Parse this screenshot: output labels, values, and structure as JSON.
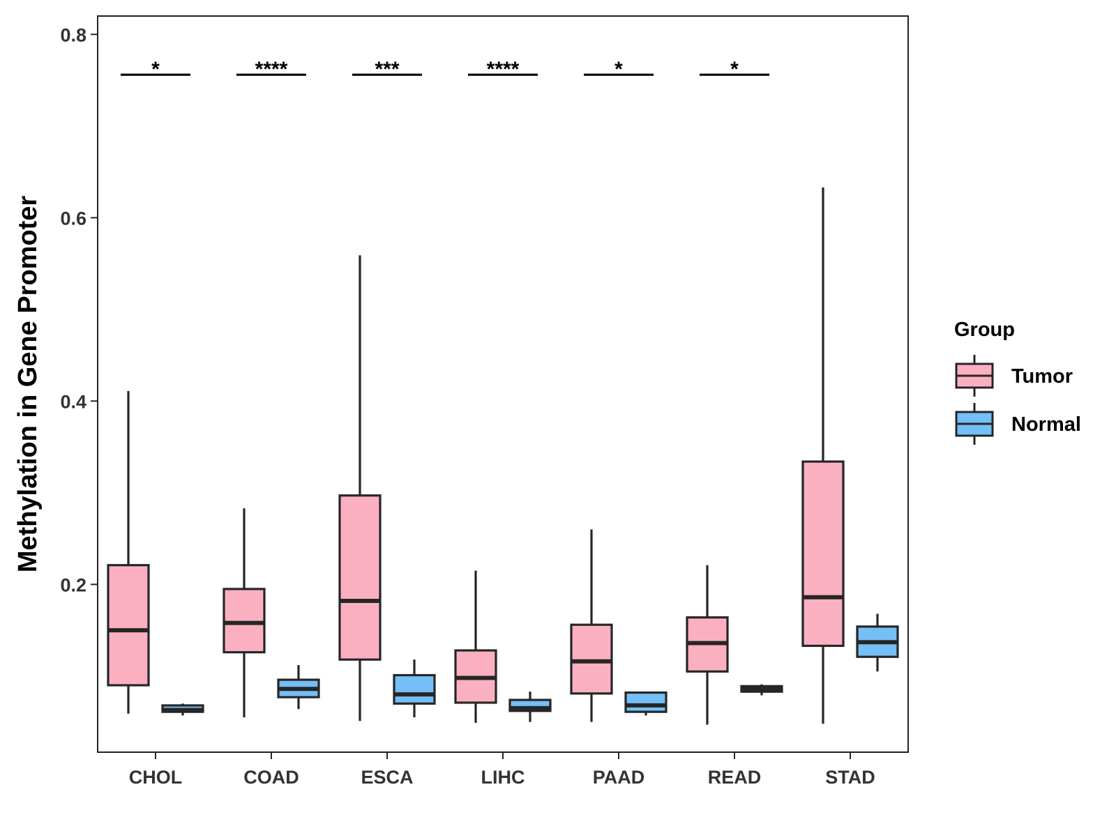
{
  "chart_data": {
    "type": "boxplot",
    "title": "",
    "xlabel": "",
    "ylabel": "Methylation in Gene Promoter",
    "ylim": [
      0.017,
      0.82
    ],
    "yticks": [
      0.2,
      0.4,
      0.6,
      0.8
    ],
    "ytick_labels": [
      "0.2",
      "0.4",
      "0.6",
      "0.8"
    ],
    "categories": [
      "CHOL",
      "COAD",
      "ESCA",
      "LIHC",
      "PAAD",
      "READ",
      "STAD"
    ],
    "legend": {
      "title": "Group",
      "position": "right",
      "entries": [
        {
          "name": "Tumor",
          "color": "#FBB0C2"
        },
        {
          "name": "Normal",
          "color": "#74BFF6"
        }
      ]
    },
    "series": [
      {
        "name": "Tumor",
        "color": "#FBB0C2",
        "boxes": [
          {
            "category": "CHOL",
            "min": 0.059,
            "q1": 0.09,
            "median": 0.15,
            "q3": 0.221,
            "max": 0.411
          },
          {
            "category": "COAD",
            "min": 0.055,
            "q1": 0.126,
            "median": 0.158,
            "q3": 0.195,
            "max": 0.283
          },
          {
            "category": "ESCA",
            "min": 0.051,
            "q1": 0.118,
            "median": 0.182,
            "q3": 0.297,
            "max": 0.559
          },
          {
            "category": "LIHC",
            "min": 0.049,
            "q1": 0.071,
            "median": 0.098,
            "q3": 0.128,
            "max": 0.215
          },
          {
            "category": "PAAD",
            "min": 0.05,
            "q1": 0.081,
            "median": 0.116,
            "q3": 0.156,
            "max": 0.26
          },
          {
            "category": "READ",
            "min": 0.047,
            "q1": 0.105,
            "median": 0.136,
            "q3": 0.164,
            "max": 0.221
          },
          {
            "category": "STAD",
            "min": 0.048,
            "q1": 0.133,
            "median": 0.186,
            "q3": 0.334,
            "max": 0.633
          }
        ]
      },
      {
        "name": "Normal",
        "color": "#74BFF6",
        "boxes": [
          {
            "category": "CHOL",
            "min": 0.057,
            "q1": 0.061,
            "median": 0.063,
            "q3": 0.068,
            "max": 0.07
          },
          {
            "category": "COAD",
            "min": 0.064,
            "q1": 0.077,
            "median": 0.086,
            "q3": 0.096,
            "max": 0.112
          },
          {
            "category": "ESCA",
            "min": 0.055,
            "q1": 0.07,
            "median": 0.08,
            "q3": 0.101,
            "max": 0.118
          },
          {
            "category": "LIHC",
            "min": 0.05,
            "q1": 0.062,
            "median": 0.065,
            "q3": 0.074,
            "max": 0.083
          },
          {
            "category": "PAAD",
            "min": 0.057,
            "q1": 0.061,
            "median": 0.068,
            "q3": 0.082,
            "max": 0.082
          },
          {
            "category": "READ",
            "min": 0.079,
            "q1": 0.083,
            "median": 0.086,
            "q3": 0.089,
            "max": 0.091
          },
          {
            "category": "STAD",
            "min": 0.105,
            "q1": 0.121,
            "median": 0.137,
            "q3": 0.154,
            "max": 0.168
          }
        ]
      }
    ],
    "annotations": [
      {
        "category": "CHOL",
        "label": "*",
        "y": 0.756
      },
      {
        "category": "COAD",
        "label": "****",
        "y": 0.756
      },
      {
        "category": "ESCA",
        "label": "***",
        "y": 0.756
      },
      {
        "category": "LIHC",
        "label": "****",
        "y": 0.756
      },
      {
        "category": "PAAD",
        "label": "*",
        "y": 0.756
      },
      {
        "category": "READ",
        "label": "*",
        "y": 0.756
      }
    ]
  }
}
